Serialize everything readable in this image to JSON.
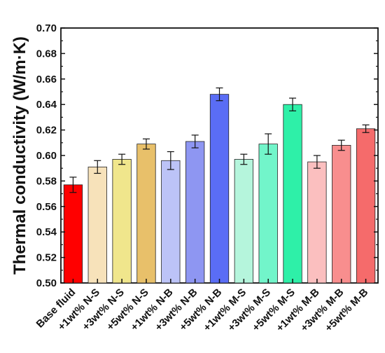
{
  "chart_data": {
    "type": "bar",
    "xlabel": "",
    "ylabel": "Thermal conductivity (W/m·K)",
    "ylim": [
      0.5,
      0.7
    ],
    "yticks": [
      "0.50",
      "0.52",
      "0.54",
      "0.56",
      "0.58",
      "0.60",
      "0.62",
      "0.64",
      "0.66",
      "0.68",
      "0.70"
    ],
    "categories": [
      "Base fluid",
      "+1wt% N-S",
      "+3wt% N-S",
      "+5wt% N-S",
      "+1wt% N-B",
      "+3wt% N-B",
      "+5wt% N-B",
      "+1wt% M-S",
      "+3wt% M-S",
      "+5wt% M-S",
      "+1wt% M-B",
      "+3wt% M-B",
      "+5wt% M-B"
    ],
    "values": [
      0.577,
      0.591,
      0.597,
      0.609,
      0.596,
      0.611,
      0.648,
      0.597,
      0.609,
      0.64,
      0.595,
      0.608,
      0.621
    ],
    "errors": [
      0.006,
      0.005,
      0.004,
      0.004,
      0.007,
      0.005,
      0.005,
      0.004,
      0.008,
      0.005,
      0.005,
      0.004,
      0.003
    ],
    "colors": [
      "#ff0000",
      "#f7e2ba",
      "#f0e68c",
      "#e8c06a",
      "#bcc3f7",
      "#8e96f2",
      "#5a6df5",
      "#b5f5dc",
      "#72f5ca",
      "#2ef0a8",
      "#fbbfbf",
      "#f88e8e",
      "#f56b6b"
    ],
    "grid": false,
    "legend": "none"
  }
}
